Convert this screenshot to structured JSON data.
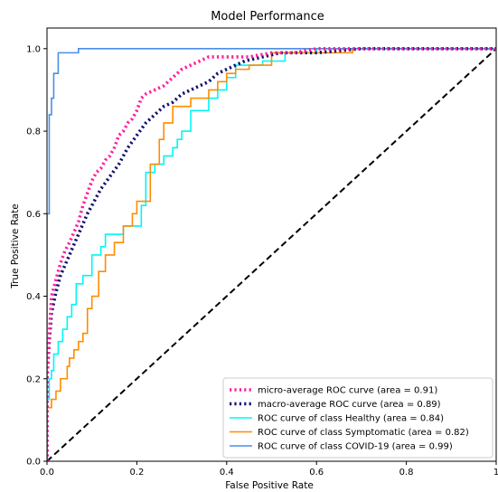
{
  "chart_data": {
    "type": "line",
    "title": "Model Performance",
    "xlabel": "False Positive Rate",
    "ylabel": "True Positive Rate",
    "xlim": [
      0.0,
      1.0
    ],
    "ylim": [
      0.0,
      1.05
    ],
    "x_ticks": [
      "0.0",
      "0.2",
      "0.4",
      "0.6",
      "0.8",
      "1"
    ],
    "y_ticks": [
      "0.0",
      "0.2",
      "0.4",
      "0.6",
      "0.8",
      "1.0"
    ],
    "grid": false,
    "legend_position": "lower-right",
    "series": [
      {
        "name": "micro-average ROC curve (area = 0.91)",
        "color": "#ff1f9b",
        "style": "dotted",
        "x": [
          0.0,
          0.0,
          0.005,
          0.01,
          0.02,
          0.03,
          0.04,
          0.05,
          0.07,
          0.08,
          0.09,
          0.1,
          0.11,
          0.12,
          0.13,
          0.14,
          0.15,
          0.16,
          0.17,
          0.18,
          0.19,
          0.2,
          0.21,
          0.22,
          0.24,
          0.26,
          0.28,
          0.3,
          0.32,
          0.34,
          0.36,
          0.4,
          0.45,
          0.5,
          0.55,
          0.6,
          0.7,
          0.8,
          0.9,
          1.0
        ],
        "y": [
          0.0,
          0.2,
          0.3,
          0.4,
          0.44,
          0.48,
          0.51,
          0.53,
          0.58,
          0.62,
          0.65,
          0.68,
          0.7,
          0.71,
          0.73,
          0.74,
          0.76,
          0.79,
          0.8,
          0.82,
          0.83,
          0.85,
          0.88,
          0.89,
          0.9,
          0.91,
          0.93,
          0.95,
          0.96,
          0.97,
          0.98,
          0.98,
          0.98,
          0.99,
          0.99,
          1.0,
          1.0,
          1.0,
          1.0,
          1.0
        ]
      },
      {
        "name": "macro-average ROC curve (area = 0.89)",
        "color": "#101070",
        "style": "dotted",
        "x": [
          0.0,
          0.0,
          0.005,
          0.01,
          0.02,
          0.03,
          0.05,
          0.07,
          0.09,
          0.1,
          0.11,
          0.12,
          0.14,
          0.16,
          0.18,
          0.2,
          0.22,
          0.24,
          0.26,
          0.28,
          0.3,
          0.32,
          0.34,
          0.36,
          0.38,
          0.4,
          0.44,
          0.48,
          0.52,
          0.6,
          0.7,
          0.8,
          0.9,
          1.0
        ],
        "y": [
          0.0,
          0.2,
          0.29,
          0.36,
          0.41,
          0.45,
          0.5,
          0.55,
          0.6,
          0.62,
          0.64,
          0.66,
          0.69,
          0.72,
          0.76,
          0.79,
          0.82,
          0.84,
          0.86,
          0.87,
          0.89,
          0.9,
          0.91,
          0.92,
          0.94,
          0.95,
          0.97,
          0.98,
          0.99,
          0.99,
          1.0,
          1.0,
          1.0,
          1.0
        ]
      },
      {
        "name": "ROC curve of class Healthy (area = 0.84)",
        "color": "#00f5f5",
        "style": "solid",
        "x": [
          0.0,
          0.0,
          0.005,
          0.005,
          0.01,
          0.01,
          0.015,
          0.015,
          0.025,
          0.025,
          0.035,
          0.035,
          0.045,
          0.045,
          0.055,
          0.055,
          0.065,
          0.065,
          0.08,
          0.08,
          0.1,
          0.1,
          0.12,
          0.12,
          0.13,
          0.13,
          0.17,
          0.17,
          0.21,
          0.21,
          0.22,
          0.22,
          0.24,
          0.24,
          0.26,
          0.26,
          0.28,
          0.28,
          0.29,
          0.29,
          0.3,
          0.3,
          0.32,
          0.32,
          0.36,
          0.36,
          0.38,
          0.38,
          0.4,
          0.4,
          0.42,
          0.42,
          0.48,
          0.48,
          0.53,
          0.53,
          0.6,
          0.6,
          0.75,
          0.75,
          0.85,
          0.85,
          1.0
        ],
        "y": [
          0.0,
          0.15,
          0.15,
          0.2,
          0.2,
          0.22,
          0.22,
          0.26,
          0.26,
          0.29,
          0.29,
          0.32,
          0.32,
          0.35,
          0.35,
          0.38,
          0.38,
          0.43,
          0.43,
          0.45,
          0.45,
          0.5,
          0.5,
          0.52,
          0.52,
          0.55,
          0.55,
          0.57,
          0.57,
          0.62,
          0.62,
          0.7,
          0.7,
          0.72,
          0.72,
          0.74,
          0.74,
          0.76,
          0.76,
          0.78,
          0.78,
          0.8,
          0.8,
          0.85,
          0.85,
          0.88,
          0.88,
          0.9,
          0.9,
          0.93,
          0.93,
          0.96,
          0.96,
          0.97,
          0.97,
          0.99,
          0.99,
          1.0,
          1.0,
          1.0,
          1.0,
          1.0,
          1.0
        ]
      },
      {
        "name": "ROC curve of class Symptomatic (area = 0.82)",
        "color": "#ff8c00",
        "style": "solid",
        "x": [
          0.0,
          0.0,
          0.01,
          0.01,
          0.02,
          0.02,
          0.03,
          0.03,
          0.045,
          0.045,
          0.05,
          0.05,
          0.06,
          0.06,
          0.07,
          0.07,
          0.08,
          0.08,
          0.09,
          0.09,
          0.1,
          0.1,
          0.115,
          0.115,
          0.13,
          0.13,
          0.15,
          0.15,
          0.17,
          0.17,
          0.19,
          0.19,
          0.2,
          0.2,
          0.23,
          0.23,
          0.25,
          0.25,
          0.26,
          0.26,
          0.28,
          0.28,
          0.32,
          0.32,
          0.36,
          0.36,
          0.38,
          0.38,
          0.4,
          0.4,
          0.42,
          0.42,
          0.45,
          0.45,
          0.5,
          0.5,
          0.56,
          0.56,
          0.6,
          0.6,
          0.68,
          0.68,
          0.7,
          0.7,
          1.0
        ],
        "y": [
          0.0,
          0.13,
          0.13,
          0.15,
          0.15,
          0.17,
          0.17,
          0.2,
          0.2,
          0.23,
          0.23,
          0.25,
          0.25,
          0.27,
          0.27,
          0.29,
          0.29,
          0.31,
          0.31,
          0.37,
          0.37,
          0.4,
          0.4,
          0.46,
          0.46,
          0.5,
          0.5,
          0.53,
          0.53,
          0.57,
          0.57,
          0.6,
          0.6,
          0.63,
          0.63,
          0.72,
          0.72,
          0.78,
          0.78,
          0.82,
          0.82,
          0.86,
          0.86,
          0.88,
          0.88,
          0.9,
          0.9,
          0.92,
          0.92,
          0.94,
          0.94,
          0.95,
          0.95,
          0.96,
          0.96,
          0.99,
          0.99,
          0.99,
          0.99,
          0.99,
          0.99,
          1.0,
          1.0,
          1.0,
          1.0
        ]
      },
      {
        "name": "ROC curve of class COVID-19 (area = 0.99)",
        "color": "#4c8ee8",
        "style": "solid",
        "x": [
          0.0,
          0.0,
          0.005,
          0.005,
          0.01,
          0.01,
          0.015,
          0.015,
          0.025,
          0.025,
          0.07,
          0.07,
          1.0
        ],
        "y": [
          0.0,
          0.6,
          0.6,
          0.84,
          0.84,
          0.88,
          0.88,
          0.94,
          0.94,
          0.99,
          0.99,
          1.0,
          1.0
        ]
      }
    ],
    "reference_line": {
      "x": [
        0.0,
        1.0
      ],
      "y": [
        0.0,
        1.0
      ],
      "color": "#000000",
      "style": "dashed"
    }
  }
}
